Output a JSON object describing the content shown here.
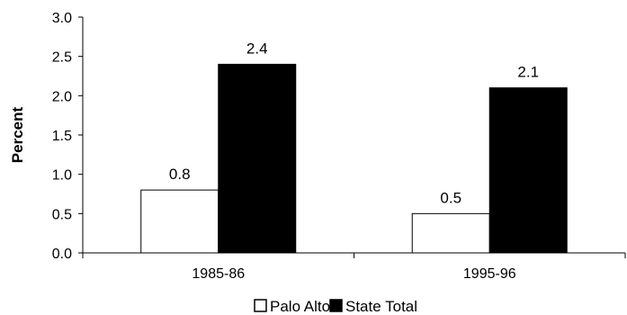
{
  "chart_data": {
    "type": "bar",
    "categories": [
      "1985-86",
      "1995-96"
    ],
    "series": [
      {
        "name": "Palo Alto",
        "values": [
          0.8,
          0.5
        ],
        "color": "#ffffff"
      },
      {
        "name": "State Total",
        "values": [
          2.4,
          2.1
        ],
        "color": "#000000"
      }
    ],
    "data_labels": [
      [
        "0.8",
        "0.5"
      ],
      [
        "2.4",
        "2.1"
      ]
    ],
    "y_ticks": [
      "0.0",
      "0.5",
      "1.0",
      "1.5",
      "2.0",
      "2.5",
      "3.0"
    ],
    "xlabel": "",
    "ylabel": "Percent",
    "ylim": [
      0,
      3.0
    ],
    "grid": false,
    "legend": "bottom"
  }
}
